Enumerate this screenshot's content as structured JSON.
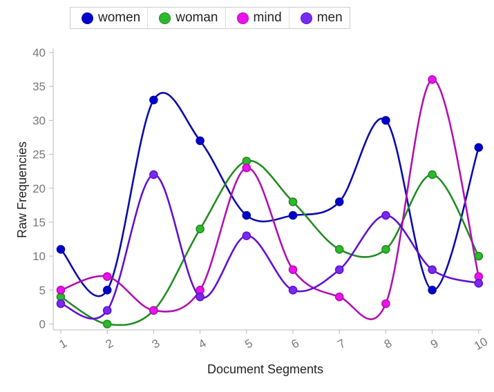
{
  "chart_data": {
    "type": "line",
    "curve": "smooth",
    "xlabel": "Document Segments",
    "ylabel": "Raw Frequencies",
    "categories": [
      "1",
      "2",
      "3",
      "4",
      "5",
      "6",
      "7",
      "8",
      "9",
      "10"
    ],
    "ylim": [
      0,
      40
    ],
    "yticks": [
      "0",
      "5",
      "10",
      "15",
      "20",
      "25",
      "30",
      "35",
      "40"
    ],
    "grid": false,
    "legend_position": "top",
    "series": [
      {
        "name": "women",
        "color": "#0a0aa8",
        "fill": "#0000cc",
        "values": [
          11,
          5,
          33,
          27,
          16,
          16,
          18,
          30,
          5,
          26
        ]
      },
      {
        "name": "woman",
        "color": "#228b22",
        "fill": "#2cba2c",
        "values": [
          4,
          0,
          2,
          14,
          24,
          18,
          11,
          11,
          22,
          10
        ]
      },
      {
        "name": "mind",
        "color": "#b010b0",
        "fill": "#ee11ee",
        "values": [
          5,
          7,
          2,
          5,
          23,
          8,
          4,
          3,
          36,
          7
        ]
      },
      {
        "name": "men",
        "color": "#6010d0",
        "fill": "#7a2af0",
        "values": [
          3,
          2,
          22,
          4,
          13,
          5,
          8,
          16,
          8,
          6
        ]
      }
    ]
  }
}
